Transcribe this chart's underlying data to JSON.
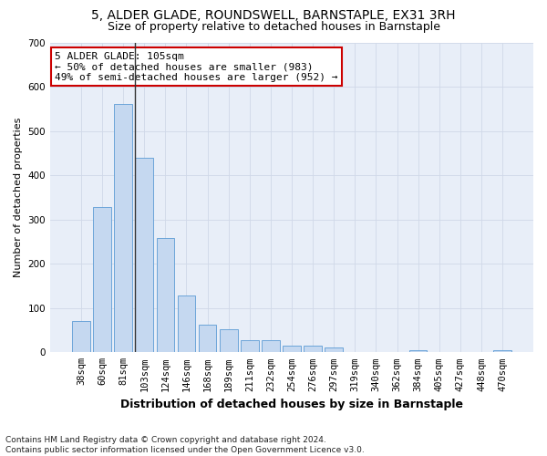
{
  "title1": "5, ALDER GLADE, ROUNDSWELL, BARNSTAPLE, EX31 3RH",
  "title2": "Size of property relative to detached houses in Barnstaple",
  "xlabel": "Distribution of detached houses by size in Barnstaple",
  "ylabel": "Number of detached properties",
  "categories": [
    "38sqm",
    "60sqm",
    "81sqm",
    "103sqm",
    "124sqm",
    "146sqm",
    "168sqm",
    "189sqm",
    "211sqm",
    "232sqm",
    "254sqm",
    "276sqm",
    "297sqm",
    "319sqm",
    "340sqm",
    "362sqm",
    "384sqm",
    "405sqm",
    "427sqm",
    "448sqm",
    "470sqm"
  ],
  "values": [
    70,
    328,
    560,
    440,
    258,
    128,
    63,
    53,
    28,
    28,
    15,
    15,
    10,
    0,
    0,
    0,
    5,
    0,
    0,
    0,
    5
  ],
  "bar_color": "#c5d8f0",
  "bar_edge_color": "#5b9bd5",
  "vline_index": 3,
  "vline_color": "#333333",
  "annotation_text": "5 ALDER GLADE: 105sqm\n← 50% of detached houses are smaller (983)\n49% of semi-detached houses are larger (952) →",
  "annotation_box_color": "#ffffff",
  "annotation_box_edge_color": "#cc0000",
  "ylim": [
    0,
    700
  ],
  "yticks": [
    0,
    100,
    200,
    300,
    400,
    500,
    600,
    700
  ],
  "grid_color": "#d0d8e8",
  "bg_color": "#e8eef8",
  "footnote": "Contains HM Land Registry data © Crown copyright and database right 2024.\nContains public sector information licensed under the Open Government Licence v3.0.",
  "title1_fontsize": 10,
  "title2_fontsize": 9,
  "xlabel_fontsize": 9,
  "ylabel_fontsize": 8,
  "tick_fontsize": 7.5,
  "annotation_fontsize": 8,
  "footnote_fontsize": 6.5
}
